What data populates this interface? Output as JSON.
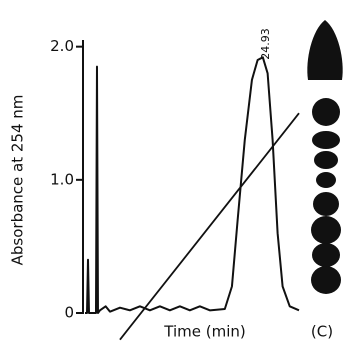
{
  "chart_data": {
    "type": "line",
    "y_label": "Absorbance at 254 nm",
    "x_label": "Time (min)",
    "panel_label": "(C)",
    "annotation": "24.93",
    "x": [
      0,
      0.28,
      0.42,
      0.56,
      1.54,
      1.68,
      1.82,
      2.1,
      2.9,
      3.5,
      4.9,
      6.3,
      7.7,
      9.1,
      10.5,
      11.9,
      13.3,
      14.7,
      16.1,
      17.5,
      19.6,
      20.6,
      21.4,
      22.4,
      23.4,
      24.2,
      24.93,
      25.6,
      26.3,
      27.0,
      27.7,
      28.7,
      30
    ],
    "series": [
      {
        "color": "#111111",
        "values": [
          0,
          0,
          0.4,
          0,
          0,
          1.85,
          0,
          0.02,
          0.05,
          0.01,
          0.04,
          0.02,
          0.05,
          0.02,
          0.05,
          0.02,
          0.05,
          0.02,
          0.05,
          0.02,
          0.03,
          0.2,
          0.7,
          1.3,
          1.75,
          1.9,
          1.92,
          1.8,
          1.3,
          0.6,
          0.2,
          0.05,
          0.02
        ]
      }
    ],
    "gradient": {
      "x": [
        4.9,
        30
      ],
      "values": [
        -0.2,
        1.5
      ]
    },
    "xlim": [
      0,
      30
    ],
    "ylim": [
      0,
      2.05
    ],
    "yticks": [
      0,
      {
        "value": 1,
        "label": "1.0"
      },
      {
        "value": 2,
        "label": "2.0"
      }
    ]
  }
}
